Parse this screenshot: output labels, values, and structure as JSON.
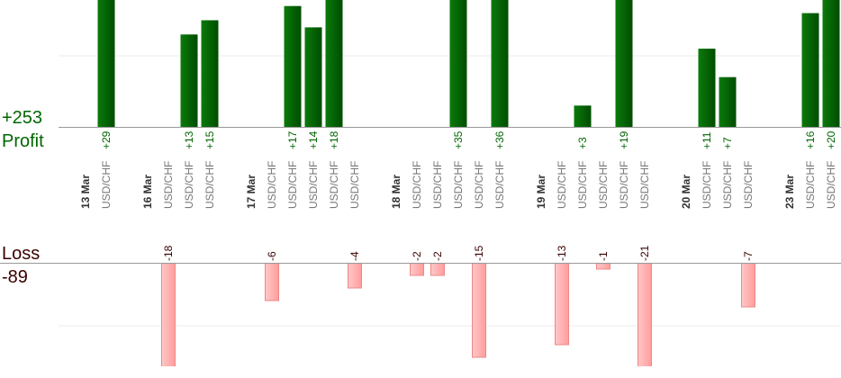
{
  "summary": {
    "profit_total": "+253",
    "profit_label": "Profit",
    "loss_label": "Loss",
    "loss_total": "-89"
  },
  "days": [
    {
      "date": "13 Mar",
      "trades": [
        {
          "symbol": "USD/CHF",
          "value": 29,
          "label": "+29"
        }
      ]
    },
    {
      "date": "16 Mar",
      "trades": [
        {
          "symbol": "USD/CHF",
          "value": -18
        },
        {
          "symbol": "USD/CHF",
          "value": 13,
          "label": "+13"
        },
        {
          "symbol": "USD/CHF",
          "value": 15,
          "label": "+15"
        }
      ]
    },
    {
      "date": "17 Mar",
      "trades": [
        {
          "symbol": "USD/CHF",
          "value": -6
        },
        {
          "symbol": "USD/CHF",
          "value": 17,
          "label": "+17"
        },
        {
          "symbol": "USD/CHF",
          "value": 14,
          "label": "+14"
        },
        {
          "symbol": "USD/CHF",
          "value": 18,
          "label": "+18"
        },
        {
          "symbol": "USD/CHF",
          "value": -4
        }
      ]
    },
    {
      "date": "18 Mar",
      "trades": [
        {
          "symbol": "USD/CHF",
          "value": -2
        },
        {
          "symbol": "USD/CHF",
          "value": -2
        },
        {
          "symbol": "USD/CHF",
          "value": 35,
          "label": "+35"
        },
        {
          "symbol": "USD/CHF",
          "value": -15
        },
        {
          "symbol": "USD/CHF",
          "value": 36,
          "label": "+36"
        }
      ]
    },
    {
      "date": "19 Mar",
      "trades": [
        {
          "symbol": "USD/CHF",
          "value": -13
        },
        {
          "symbol": "USD/CHF",
          "value": 3,
          "label": "+3"
        },
        {
          "symbol": "USD/CHF",
          "value": -1
        },
        {
          "symbol": "USD/CHF",
          "value": 19,
          "label": "+19"
        },
        {
          "symbol": "USD/CHF",
          "value": -21
        }
      ]
    },
    {
      "date": "20 Mar",
      "trades": [
        {
          "symbol": "USD/CHF",
          "value": 11,
          "label": "+11"
        },
        {
          "symbol": "USD/CHF",
          "value": 7,
          "label": "+7"
        },
        {
          "symbol": "USD/CHF",
          "value": -7
        }
      ]
    },
    {
      "date": "23 Mar",
      "trades": [
        {
          "symbol": "USD/CHF",
          "value": 16,
          "label": "+16"
        },
        {
          "symbol": "USD/CHF",
          "value": 20,
          "label": "+20"
        }
      ]
    }
  ]
}
